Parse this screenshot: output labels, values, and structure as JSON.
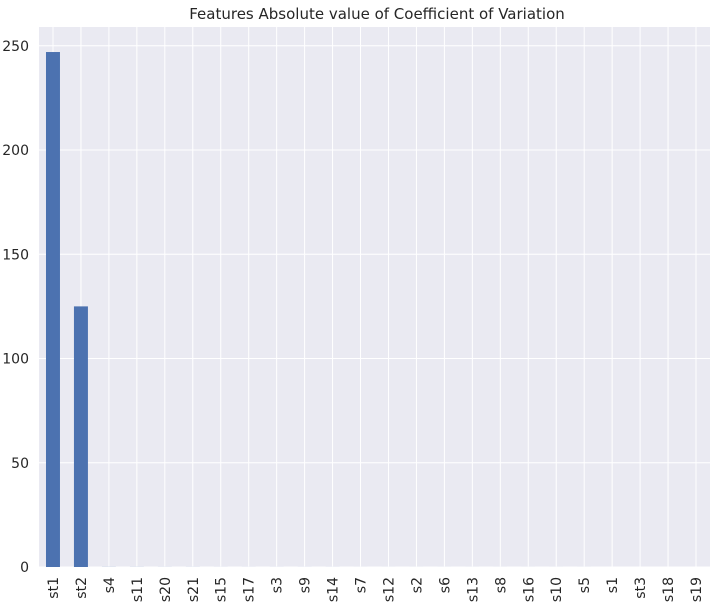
{
  "chart_data": {
    "type": "bar",
    "title": "Features Absolute value of Coefficient of Variation",
    "xlabel": "",
    "ylabel": "",
    "categories": [
      "st1",
      "st2",
      "s4",
      "s11",
      "s20",
      "s21",
      "s15",
      "s17",
      "s3",
      "s9",
      "s14",
      "s7",
      "s12",
      "s2",
      "s6",
      "s13",
      "s8",
      "s16",
      "s10",
      "s5",
      "s1",
      "st3",
      "s18",
      "s19"
    ],
    "values": [
      247,
      125,
      0.05,
      0.04,
      0.03,
      0.03,
      0.02,
      0.02,
      0.02,
      0.02,
      0.02,
      0.01,
      0.01,
      0.01,
      0.01,
      0.01,
      0.01,
      0.01,
      0.01,
      0.01,
      0,
      0,
      0,
      0
    ],
    "ylim": [
      0,
      259
    ],
    "yticks": [
      0,
      50,
      100,
      150,
      200,
      250
    ],
    "grid": true,
    "bar_color": "#4c72b0",
    "background_color": "#eaeaf2",
    "grid_color": "#ffffff"
  }
}
